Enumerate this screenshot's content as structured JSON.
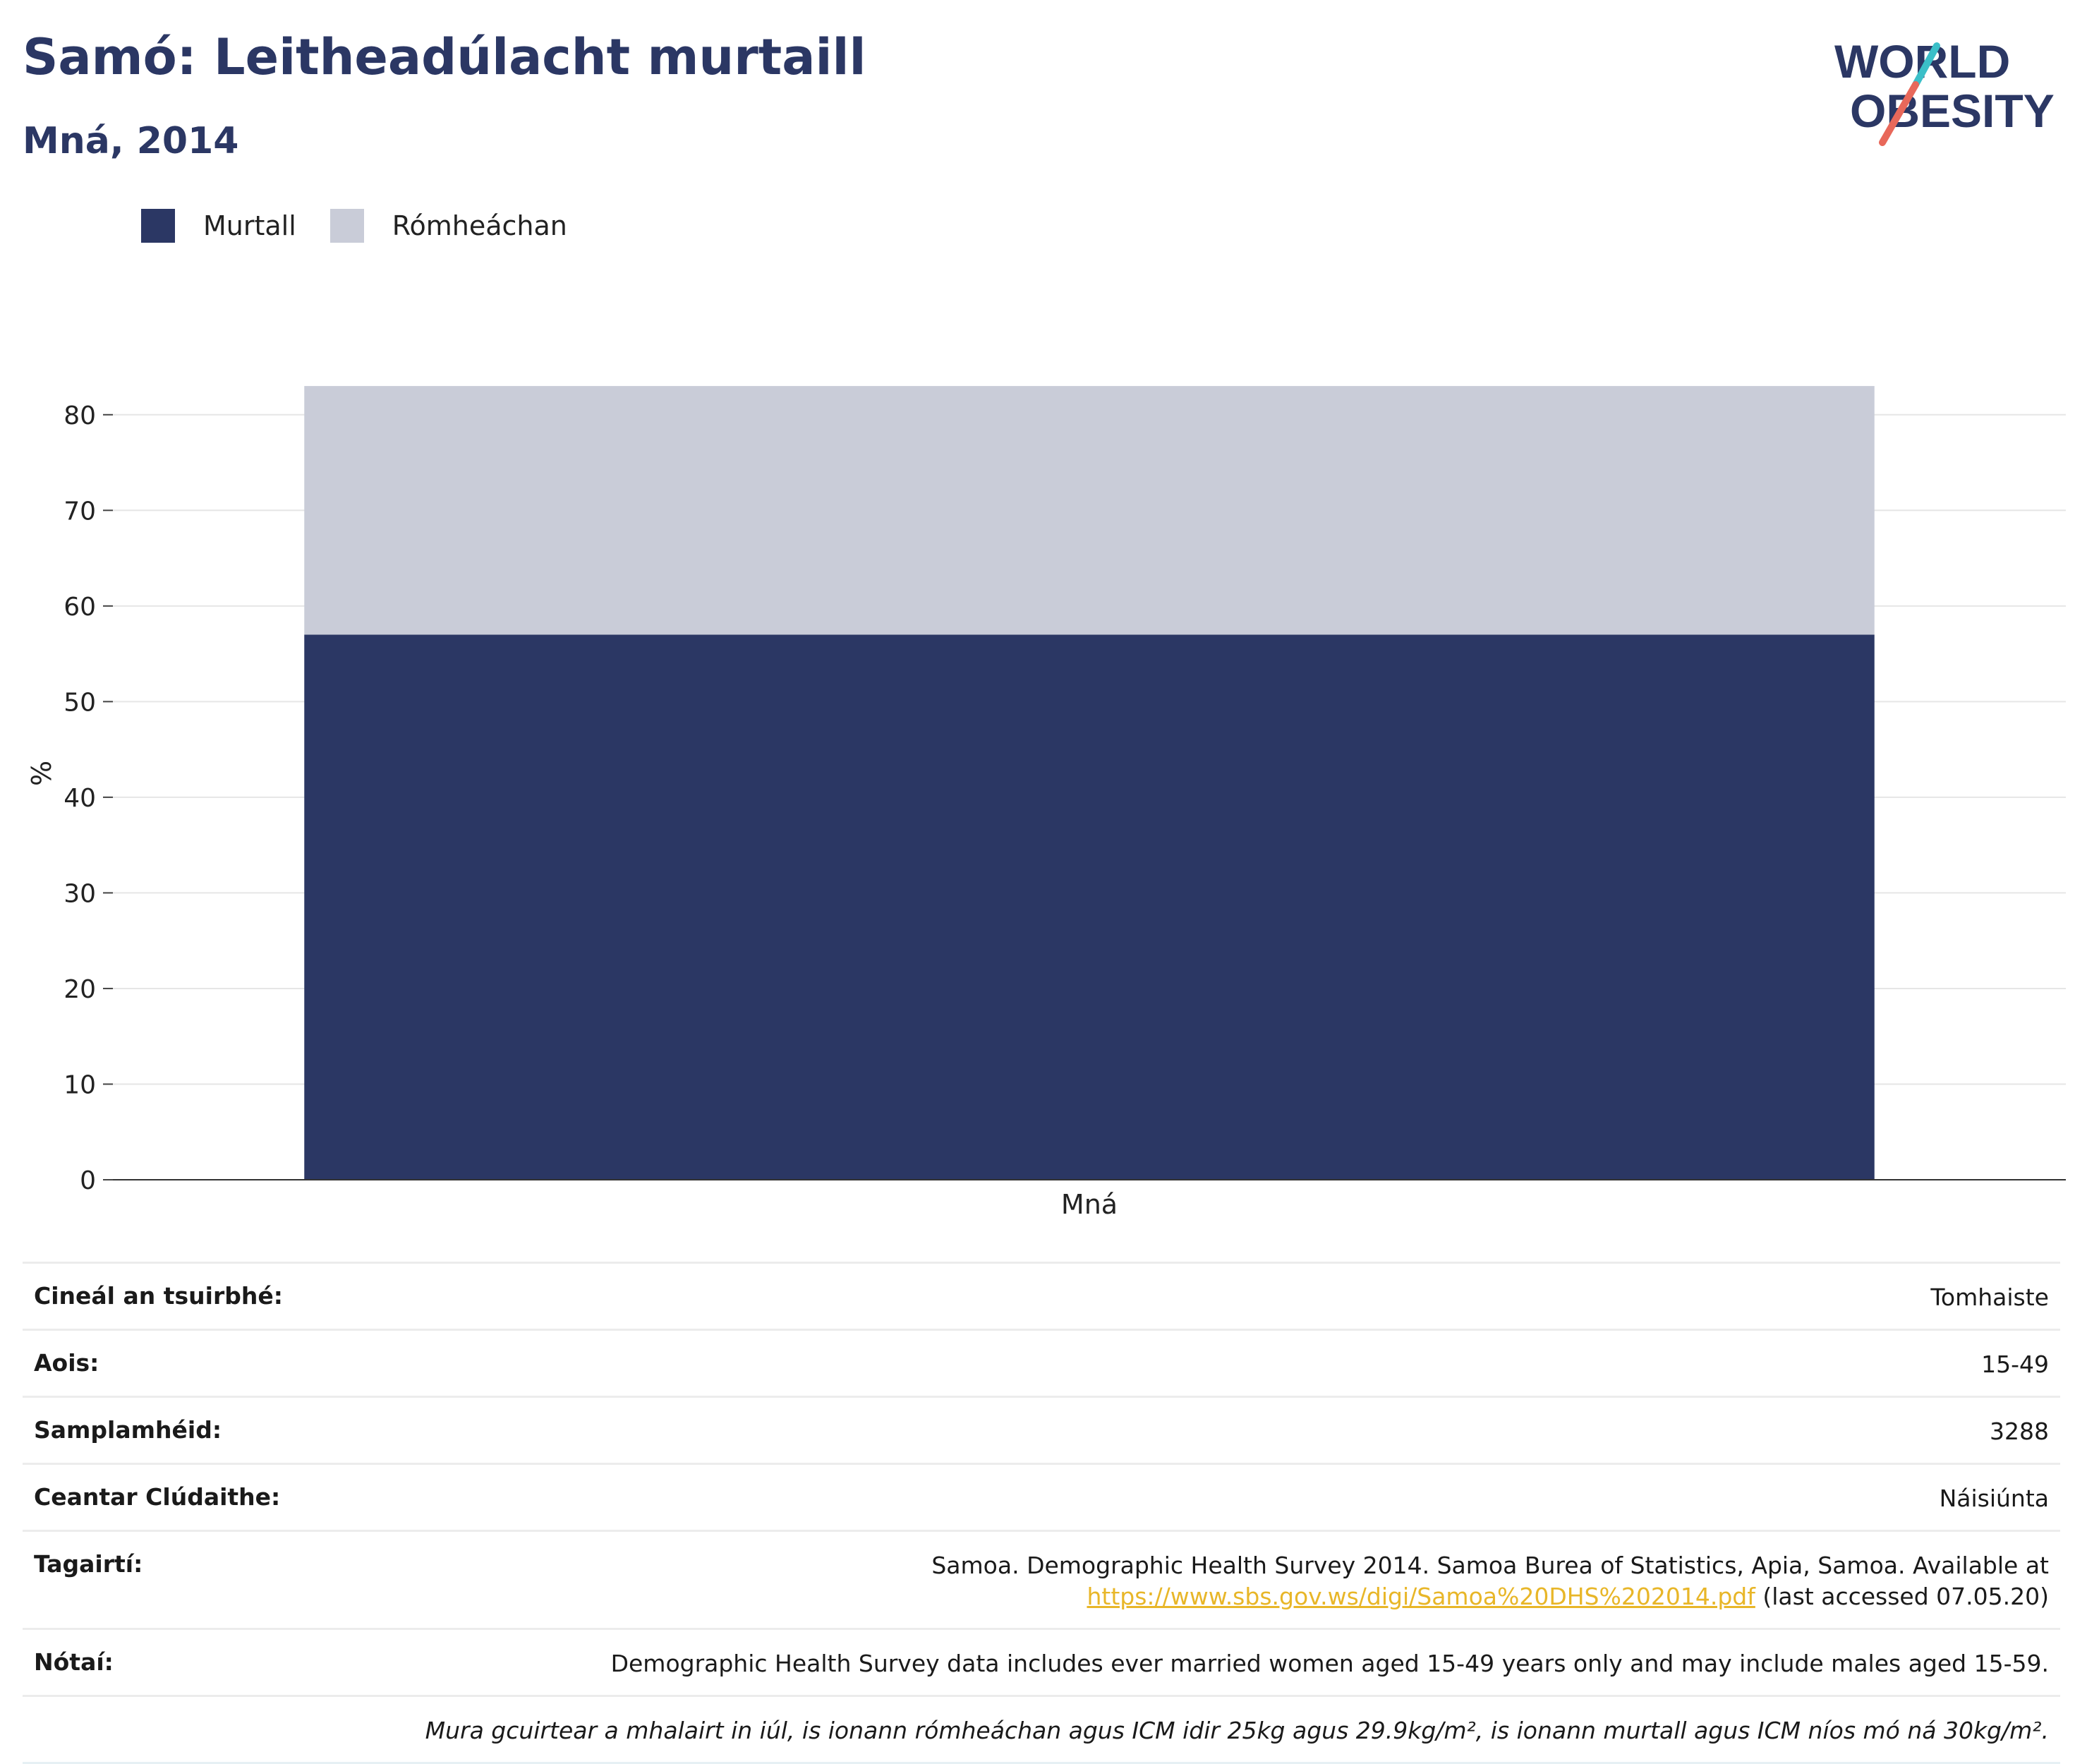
{
  "header": {
    "title": "Samó: Leitheadúlacht murtaill",
    "subtitle": "Mná, 2014"
  },
  "logo": {
    "line1": "WORLD",
    "line2": "OBESITY",
    "colors": {
      "text": "#2b3764",
      "slash_top": "#3bbfc8",
      "slash_bottom": "#e8685a"
    }
  },
  "legend": [
    {
      "label": "Murtall",
      "color": "#2b3764"
    },
    {
      "label": "Rómheáchan",
      "color": "#c9ccd8"
    }
  ],
  "chart_data": {
    "type": "bar",
    "stacked": true,
    "categories": [
      "Mná"
    ],
    "series": [
      {
        "name": "Murtall",
        "values": [
          57.0
        ],
        "color": "#2b3764"
      },
      {
        "name": "Rómheáchan",
        "values": [
          26.0
        ],
        "color": "#c9ccd8"
      }
    ],
    "ylabel": "%",
    "xlabel": "",
    "ylim": [
      0,
      85
    ],
    "yticks": [
      0,
      10,
      20,
      30,
      40,
      50,
      60,
      70,
      80
    ],
    "grid": true,
    "legend_position": "top-left"
  },
  "info": {
    "rows": [
      {
        "key": "Cineál an tsuirbhé:",
        "value": "Tomhaiste"
      },
      {
        "key": "Aois:",
        "value": "15-49"
      },
      {
        "key": "Samplamhéid:",
        "value": "3288"
      },
      {
        "key": "Ceantar Clúdaithe:",
        "value": "Náisiúnta"
      }
    ],
    "references": {
      "key": "Tagairtí:",
      "text_line1": "Samoa. Demographic Health Survey 2014. Samoa Burea of Statistics, Apia, Samoa. Available at",
      "link": "https://www.sbs.gov.ws/digi/Samoa%20DHS%202014.pdf",
      "after_link": " (last accessed 07.05.20)"
    },
    "notes": {
      "key": "Nótaí:",
      "value": "Demographic Health Survey data includes ever married women aged 15-49 years only and may include males aged 15-59."
    },
    "footnote": "Mura gcuirtear a mhalairt in iúl, is ionann rómheáchan agus ICM idir 25kg agus 29.9kg/m², is ionann murtall agus ICM níos mó ná 30kg/m²."
  }
}
